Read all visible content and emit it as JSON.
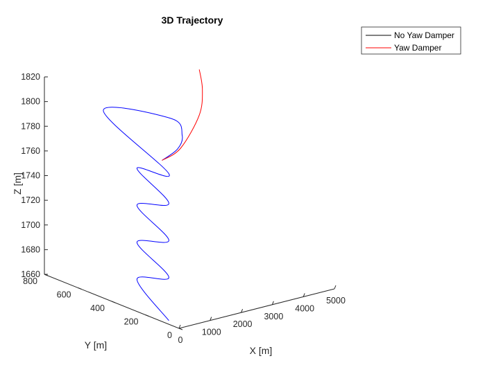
{
  "chart_data": {
    "type": "line",
    "projection": "3d",
    "title": "3D Trajectory",
    "xlabel": "X [m]",
    "ylabel": "Y [m]",
    "zlabel": "Z [m]",
    "xlim": [
      0,
      5000
    ],
    "ylim": [
      0,
      800
    ],
    "zlim": [
      1660,
      1820
    ],
    "xticks": [
      "0",
      "1000",
      "2000",
      "3000",
      "4000",
      "5000"
    ],
    "yticks": [
      "0",
      "200",
      "400",
      "600",
      "800"
    ],
    "zticks": [
      "1660",
      "1680",
      "1700",
      "1720",
      "1740",
      "1760",
      "1780",
      "1800",
      "1820"
    ],
    "grid": false,
    "legend": "top-right",
    "series": [
      {
        "name": "No Yaw Damper",
        "color": "#0000ff",
        "legend_color": "#000000",
        "description": "oscillating descent",
        "points": [
          {
            "x": 0,
            "y": 60,
            "z": 1663
          },
          {
            "x": 0,
            "y": 250,
            "z": 1686
          },
          {
            "x": 0,
            "y": 60,
            "z": 1698
          },
          {
            "x": 0,
            "y": 250,
            "z": 1716
          },
          {
            "x": 0,
            "y": 60,
            "z": 1728
          },
          {
            "x": 0,
            "y": 250,
            "z": 1746
          },
          {
            "x": 0,
            "y": 60,
            "z": 1758
          },
          {
            "x": 0,
            "y": 250,
            "z": 1776
          },
          {
            "x": 0,
            "y": 60,
            "z": 1782
          },
          {
            "x": 0,
            "y": 450,
            "z": 1812
          },
          {
            "x": 3000,
            "y": 600,
            "z": 1778
          },
          {
            "x": 3350,
            "y": 600,
            "z": 1762
          },
          {
            "x": 3200,
            "y": 600,
            "z": 1752
          },
          {
            "x": 2700,
            "y": 600,
            "z": 1746
          }
        ]
      },
      {
        "name": "Yaw Damper",
        "color": "#ff0000",
        "legend_color": "#ff0000",
        "points": [
          {
            "x": 2700,
            "y": 600,
            "z": 1746
          },
          {
            "x": 3300,
            "y": 600,
            "z": 1752
          },
          {
            "x": 3900,
            "y": 600,
            "z": 1775
          },
          {
            "x": 4000,
            "y": 600,
            "z": 1795
          },
          {
            "x": 3900,
            "y": 600,
            "z": 1812
          }
        ]
      }
    ]
  }
}
